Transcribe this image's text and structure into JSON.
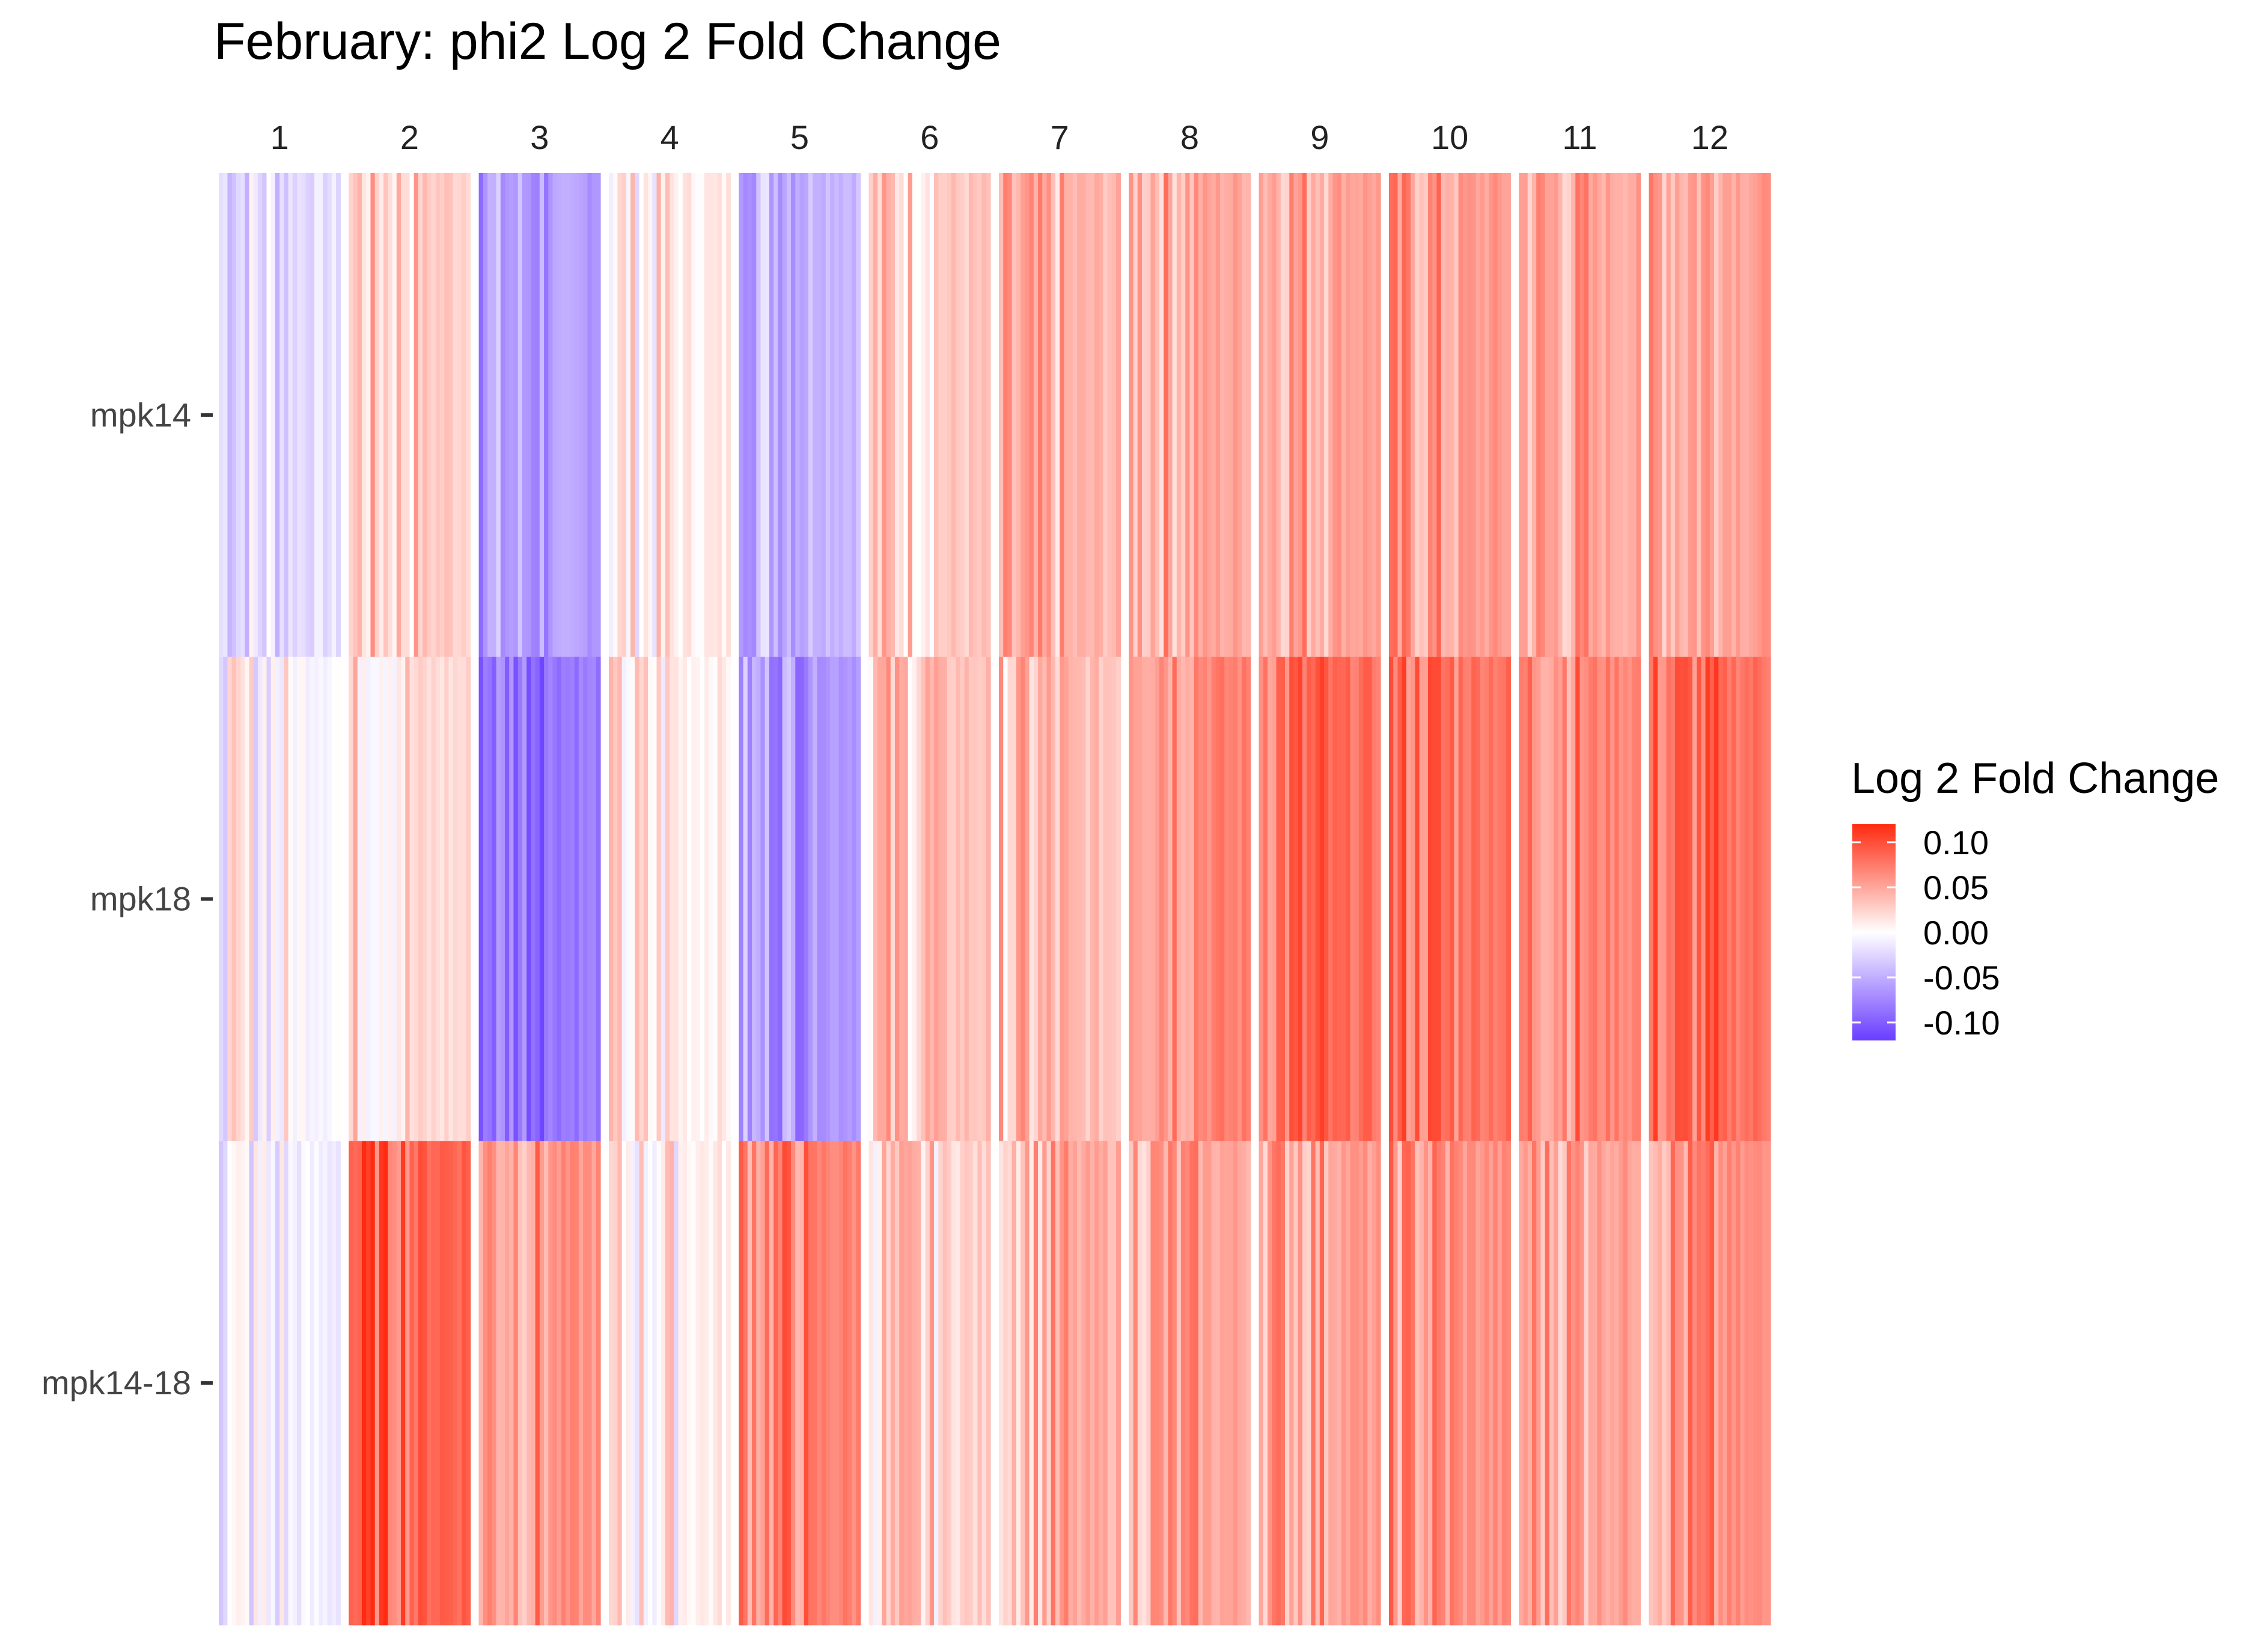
{
  "chart_data": {
    "type": "heatmap",
    "title": "February: phi2 Log 2 Fold Change",
    "columns": [
      "1",
      "2",
      "3",
      "4",
      "5",
      "6",
      "7",
      "8",
      "9",
      "10",
      "11",
      "12"
    ],
    "rows": [
      "mpk14",
      "mpk18",
      "mpk14-18"
    ],
    "values": [
      [
        -0.02,
        0.03,
        -0.06,
        0.01,
        -0.04,
        0.03,
        0.04,
        0.05,
        0.055,
        0.055,
        0.05,
        0.055
      ],
      [
        0.0,
        0.02,
        -0.08,
        0.01,
        -0.06,
        0.035,
        0.035,
        0.07,
        0.08,
        0.08,
        0.07,
        0.08
      ],
      [
        -0.01,
        0.09,
        0.06,
        0.01,
        0.07,
        0.025,
        0.045,
        0.05,
        0.055,
        0.06,
        0.055,
        0.06
      ]
    ],
    "legend": {
      "title": "Log 2 Fold Change",
      "ticks": [
        "0.10",
        "0.05",
        "0.00",
        "-0.05",
        "-0.10"
      ],
      "tick_values": [
        0.1,
        0.05,
        0.0,
        -0.05,
        -0.1
      ],
      "range": [
        -0.12,
        0.12
      ],
      "position": "right"
    },
    "colors": {
      "high": "#ff2a10",
      "mid": "#ffffff",
      "low": "#6a3dff"
    }
  }
}
